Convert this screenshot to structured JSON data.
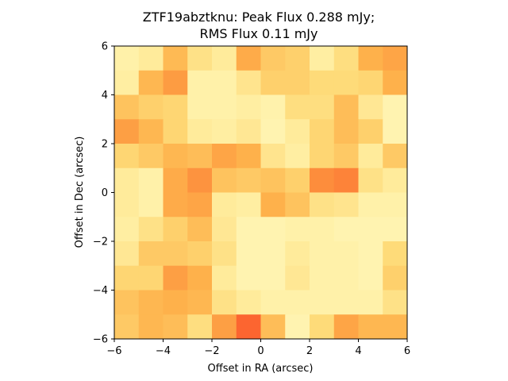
{
  "chart_data": {
    "type": "heatmap",
    "title": "ZTF19abztknu: Peak Flux 0.288 mJy;",
    "subtitle": "RMS Flux 0.11 mJy",
    "xlabel": "Offset in RA (arcsec)",
    "ylabel": "Offset in Dec (arcsec)",
    "xlim": [
      -6,
      6
    ],
    "ylim": [
      -6,
      6
    ],
    "xticks": [
      "−6",
      "−4",
      "−2",
      "0",
      "2",
      "4",
      "6"
    ],
    "yticks": [
      "−6",
      "−4",
      "−2",
      "0",
      "2",
      "4",
      "6"
    ],
    "grid": false,
    "colormap": "YlOrRd",
    "cell_size_arcsec": 1,
    "values": [
      [
        0.1,
        0.14,
        0.35,
        0.2,
        0.14,
        0.4,
        0.3,
        0.28,
        0.12,
        0.22,
        0.38,
        0.42
      ],
      [
        0.12,
        0.36,
        0.45,
        0.1,
        0.1,
        0.18,
        0.28,
        0.28,
        0.24,
        0.24,
        0.26,
        0.38
      ],
      [
        0.32,
        0.28,
        0.26,
        0.1,
        0.1,
        0.12,
        0.09,
        0.22,
        0.22,
        0.34,
        0.16,
        0.08
      ],
      [
        0.44,
        0.36,
        0.26,
        0.14,
        0.12,
        0.16,
        0.08,
        0.14,
        0.26,
        0.34,
        0.28,
        0.08
      ],
      [
        0.26,
        0.3,
        0.36,
        0.34,
        0.42,
        0.38,
        0.18,
        0.12,
        0.26,
        0.3,
        0.14,
        0.3
      ],
      [
        0.14,
        0.1,
        0.4,
        0.48,
        0.32,
        0.3,
        0.32,
        0.28,
        0.5,
        0.52,
        0.2,
        0.14
      ],
      [
        0.14,
        0.1,
        0.4,
        0.42,
        0.14,
        0.12,
        0.38,
        0.32,
        0.2,
        0.18,
        0.1,
        0.1
      ],
      [
        0.12,
        0.2,
        0.28,
        0.34,
        0.16,
        0.08,
        0.08,
        0.1,
        0.1,
        0.08,
        0.08,
        0.08
      ],
      [
        0.16,
        0.3,
        0.3,
        0.28,
        0.2,
        0.08,
        0.08,
        0.14,
        0.1,
        0.1,
        0.08,
        0.24
      ],
      [
        0.26,
        0.26,
        0.44,
        0.38,
        0.14,
        0.08,
        0.08,
        0.16,
        0.1,
        0.1,
        0.08,
        0.28
      ],
      [
        0.32,
        0.36,
        0.38,
        0.36,
        0.2,
        0.14,
        0.1,
        0.1,
        0.1,
        0.1,
        0.1,
        0.2
      ],
      [
        0.3,
        0.36,
        0.34,
        0.22,
        0.44,
        0.58,
        0.34,
        0.08,
        0.24,
        0.42,
        0.36,
        0.36
      ]
    ]
  }
}
